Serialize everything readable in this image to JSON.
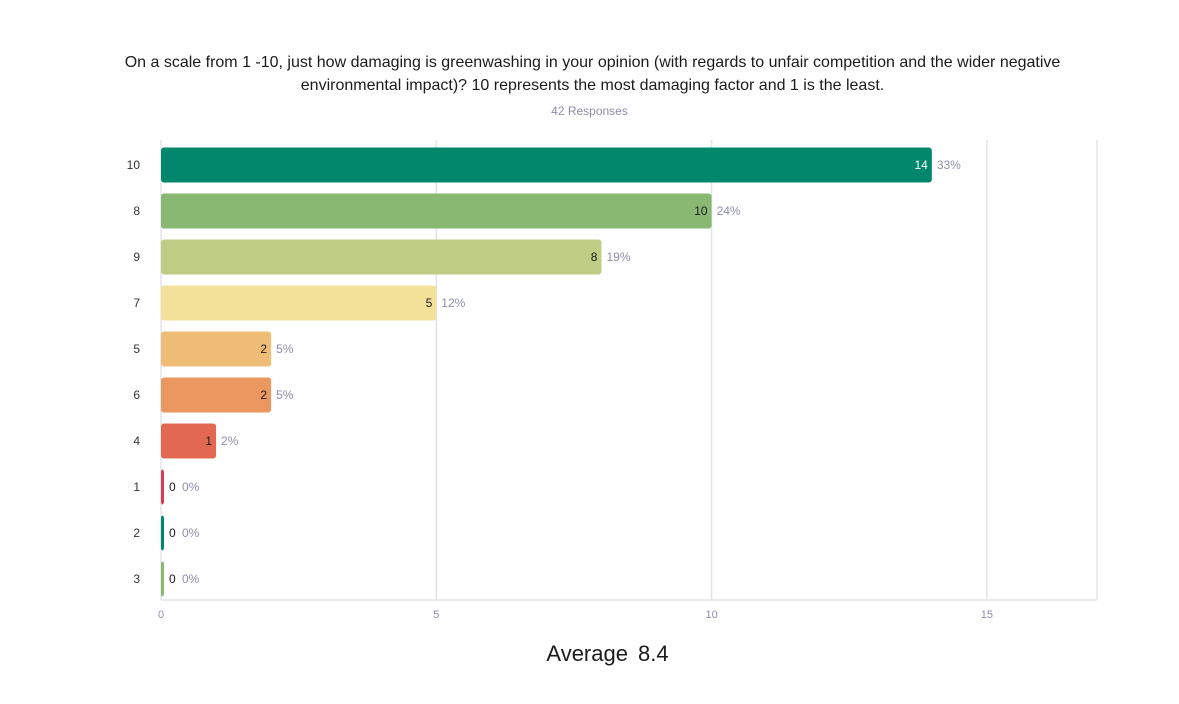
{
  "title": "On a scale from 1 -10, just how damaging is greenwashing in your opinion (with regards to unfair competition and the wider negative\nenvironmental impact)? 10 represents the most damaging factor and 1 is the least.",
  "subtitle": "42 Responses",
  "average": {
    "label": "Average",
    "value": "8.4"
  },
  "chart_data": {
    "type": "bar",
    "orientation": "horizontal",
    "categories": [
      "10",
      "8",
      "9",
      "7",
      "5",
      "6",
      "4",
      "1",
      "2",
      "3"
    ],
    "values": [
      14,
      10,
      8,
      5,
      2,
      2,
      1,
      0,
      0,
      0
    ],
    "percent_labels": [
      "33%",
      "24%",
      "19%",
      "12%",
      "5%",
      "5%",
      "2%",
      "0%",
      "0%",
      "0%"
    ],
    "colors": [
      "#00876c",
      "#89b873",
      "#bfcd84",
      "#f3e19a",
      "#f0bd76",
      "#eb9860",
      "#e36852",
      "#d43d51",
      "#00876c",
      "#89b873"
    ],
    "xlim": [
      0,
      17
    ],
    "xticks": [
      0,
      5,
      10,
      15
    ],
    "grid": true,
    "legend": "none"
  }
}
